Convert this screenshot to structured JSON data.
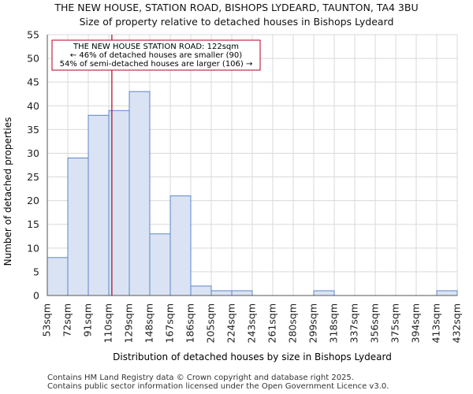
{
  "chart_data": {
    "type": "bar",
    "title": "THE NEW HOUSE, STATION ROAD, BISHOPS LYDEARD, TAUNTON, TA4 3BU",
    "subtitle": "Size of property relative to detached houses in Bishops Lydeard",
    "xlabel": "Distribution of detached houses by size in Bishops Lydeard",
    "ylabel": "Number of detached properties",
    "ylim": [
      0,
      55
    ],
    "yticks": [
      0,
      5,
      10,
      15,
      20,
      25,
      30,
      35,
      40,
      45,
      50,
      55
    ],
    "bin_edges": [
      "53sqm",
      "72sqm",
      "91sqm",
      "110sqm",
      "129sqm",
      "148sqm",
      "167sqm",
      "186sqm",
      "205sqm",
      "224sqm",
      "243sqm",
      "261sqm",
      "280sqm",
      "299sqm",
      "318sqm",
      "337sqm",
      "356sqm",
      "375sqm",
      "394sqm",
      "413sqm",
      "432sqm"
    ],
    "values": [
      8,
      29,
      38,
      39,
      43,
      13,
      21,
      2,
      1,
      1,
      0,
      0,
      0,
      1,
      0,
      0,
      0,
      0,
      0,
      1
    ],
    "marker_bin_position": 3.15,
    "annotation": {
      "line1": "THE NEW HOUSE STATION ROAD: 122sqm",
      "line2": "← 46% of detached houses are smaller (90)",
      "line3": "54% of semi-detached houses are larger (106) →"
    },
    "colors": {
      "bar_fill": "#dae3f3",
      "bar_stroke": "#5b87c8",
      "marker": "#b00020",
      "grid": "#d9d9d9"
    }
  },
  "footer": {
    "line1": "Contains HM Land Registry data © Crown copyright and database right 2025.",
    "line2": "Contains public sector information licensed under the Open Government Licence v3.0."
  }
}
